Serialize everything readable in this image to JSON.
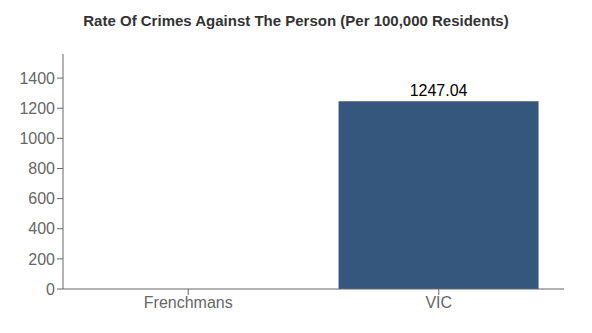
{
  "chart_data": {
    "type": "bar",
    "title": "Rate Of Crimes Against The Person (Per 100,000 Residents)",
    "categories": [
      "Frenchmans",
      "VIC"
    ],
    "values": [
      0,
      1247.04
    ],
    "color": "#35567d",
    "ylim": [
      0,
      1560
    ],
    "yticks": [
      0,
      200,
      400,
      600,
      800,
      1000,
      1200,
      1400
    ],
    "data_labels": true,
    "grid": false
  }
}
